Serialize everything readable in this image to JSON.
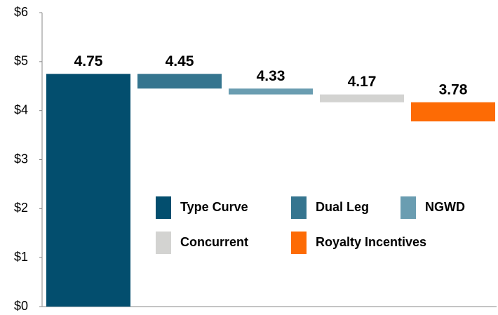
{
  "chart_data": {
    "type": "waterfall",
    "series": [
      {
        "name": "Type Curve",
        "color": "#034e6e",
        "values": [
          4.75
        ]
      },
      {
        "name": "Dual Leg",
        "color": "#35758f",
        "values": [
          4.45
        ]
      },
      {
        "name": "NGWD",
        "color": "#6a9db1",
        "values": [
          4.33
        ]
      },
      {
        "name": "Concurrent",
        "color": "#d3d3d1",
        "values": [
          4.17
        ]
      },
      {
        "name": "Royalty Incentives",
        "color": "#fd6b05",
        "values": [
          3.78
        ]
      }
    ],
    "ylim": [
      0,
      6
    ],
    "yticks": [
      {
        "value": 0,
        "label": "$0"
      },
      {
        "value": 1,
        "label": "$1"
      },
      {
        "value": 2,
        "label": "$2"
      },
      {
        "value": 3,
        "label": "$3"
      },
      {
        "value": 4,
        "label": "$4"
      },
      {
        "value": 5,
        "label": "$5"
      },
      {
        "value": 6,
        "label": "$6"
      }
    ],
    "grid": false
  }
}
